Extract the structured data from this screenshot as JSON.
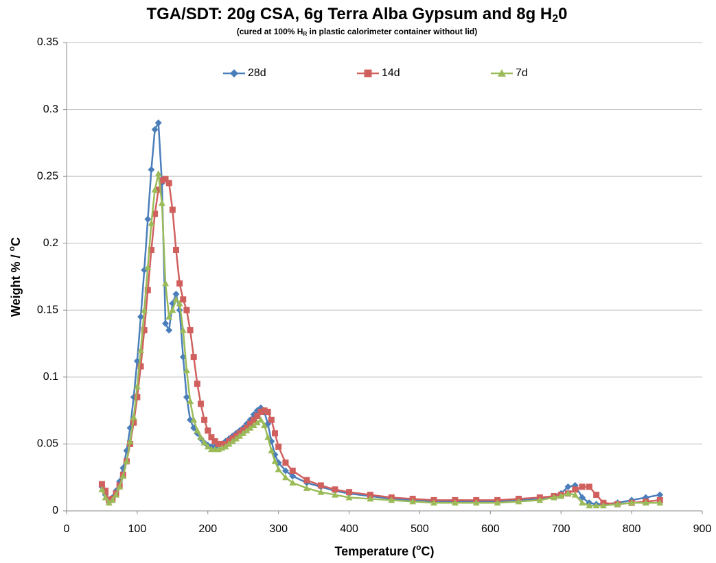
{
  "chart_data": {
    "type": "line",
    "title": [
      "TGA/SDT:  20g CSA, 6g Terra Alba Gypsum and 8g H",
      "2",
      "0"
    ],
    "subtitle": [
      "(cured at 100% H",
      "R",
      " in plastic calorimeter container without lid)"
    ],
    "xlabel": [
      "Temperature (",
      "o",
      "C)"
    ],
    "ylabel": [
      "Weight % / ",
      "o",
      "C"
    ],
    "x": [
      50,
      55,
      60,
      65,
      70,
      75,
      80,
      85,
      90,
      95,
      100,
      105,
      110,
      115,
      120,
      125,
      130,
      135,
      140,
      145,
      150,
      155,
      160,
      165,
      170,
      175,
      180,
      185,
      190,
      195,
      200,
      205,
      210,
      215,
      220,
      225,
      230,
      235,
      240,
      245,
      250,
      255,
      260,
      265,
      270,
      275,
      280,
      285,
      290,
      295,
      300,
      310,
      320,
      340,
      360,
      380,
      400,
      430,
      460,
      490,
      520,
      550,
      580,
      610,
      640,
      670,
      690,
      700,
      710,
      720,
      730,
      740,
      750,
      760,
      780,
      800,
      820,
      840
    ],
    "series": [
      {
        "name": "28d",
        "color": "#4a7ebb",
        "marker": "diamond",
        "values": [
          0.018,
          0.012,
          0.008,
          0.01,
          0.015,
          0.022,
          0.032,
          0.045,
          0.062,
          0.085,
          0.112,
          0.145,
          0.18,
          0.218,
          0.255,
          0.285,
          0.29,
          0.245,
          0.14,
          0.135,
          0.155,
          0.162,
          0.15,
          0.115,
          0.085,
          0.068,
          0.062,
          0.058,
          0.054,
          0.051,
          0.049,
          0.048,
          0.048,
          0.049,
          0.05,
          0.052,
          0.054,
          0.056,
          0.058,
          0.06,
          0.062,
          0.065,
          0.068,
          0.072,
          0.075,
          0.077,
          0.074,
          0.065,
          0.052,
          0.042,
          0.036,
          0.03,
          0.026,
          0.021,
          0.018,
          0.015,
          0.013,
          0.011,
          0.009,
          0.008,
          0.007,
          0.007,
          0.007,
          0.007,
          0.008,
          0.009,
          0.011,
          0.013,
          0.018,
          0.019,
          0.01,
          0.006,
          0.005,
          0.005,
          0.006,
          0.008,
          0.01,
          0.012
        ]
      },
      {
        "name": "14d",
        "color": "#d0605e",
        "marker": "square",
        "values": [
          0.02,
          0.015,
          0.008,
          0.009,
          0.013,
          0.019,
          0.027,
          0.037,
          0.05,
          0.066,
          0.085,
          0.108,
          0.135,
          0.165,
          0.195,
          0.222,
          0.24,
          0.247,
          0.248,
          0.245,
          0.225,
          0.195,
          0.17,
          0.158,
          0.15,
          0.135,
          0.115,
          0.095,
          0.08,
          0.068,
          0.06,
          0.055,
          0.052,
          0.05,
          0.05,
          0.05,
          0.052,
          0.054,
          0.056,
          0.058,
          0.06,
          0.062,
          0.065,
          0.068,
          0.071,
          0.074,
          0.075,
          0.074,
          0.068,
          0.058,
          0.048,
          0.036,
          0.03,
          0.023,
          0.019,
          0.016,
          0.014,
          0.012,
          0.01,
          0.009,
          0.008,
          0.008,
          0.008,
          0.008,
          0.009,
          0.01,
          0.011,
          0.012,
          0.013,
          0.016,
          0.018,
          0.018,
          0.012,
          0.006,
          0.005,
          0.006,
          0.007,
          0.008
        ]
      },
      {
        "name": "7d",
        "color": "#9bbb59",
        "marker": "triangle",
        "values": [
          0.016,
          0.01,
          0.006,
          0.008,
          0.012,
          0.018,
          0.026,
          0.037,
          0.052,
          0.07,
          0.093,
          0.12,
          0.15,
          0.182,
          0.215,
          0.24,
          0.252,
          0.23,
          0.17,
          0.145,
          0.15,
          0.158,
          0.155,
          0.135,
          0.105,
          0.082,
          0.068,
          0.06,
          0.055,
          0.051,
          0.048,
          0.046,
          0.046,
          0.046,
          0.047,
          0.048,
          0.05,
          0.052,
          0.054,
          0.056,
          0.058,
          0.06,
          0.062,
          0.064,
          0.066,
          0.068,
          0.064,
          0.055,
          0.045,
          0.037,
          0.031,
          0.025,
          0.021,
          0.017,
          0.014,
          0.012,
          0.01,
          0.009,
          0.008,
          0.007,
          0.006,
          0.006,
          0.006,
          0.006,
          0.007,
          0.008,
          0.01,
          0.011,
          0.013,
          0.012,
          0.006,
          0.004,
          0.004,
          0.004,
          0.005,
          0.006,
          0.006,
          0.006
        ]
      }
    ],
    "xlim": [
      0,
      900
    ],
    "xticks": [
      0,
      100,
      200,
      300,
      400,
      500,
      600,
      700,
      800,
      900
    ],
    "ylim": [
      0,
      0.35
    ],
    "yticks": [
      0,
      0.05,
      0.1,
      0.15,
      0.2,
      0.25,
      0.3,
      0.35
    ],
    "grid": true,
    "legend": "top"
  }
}
